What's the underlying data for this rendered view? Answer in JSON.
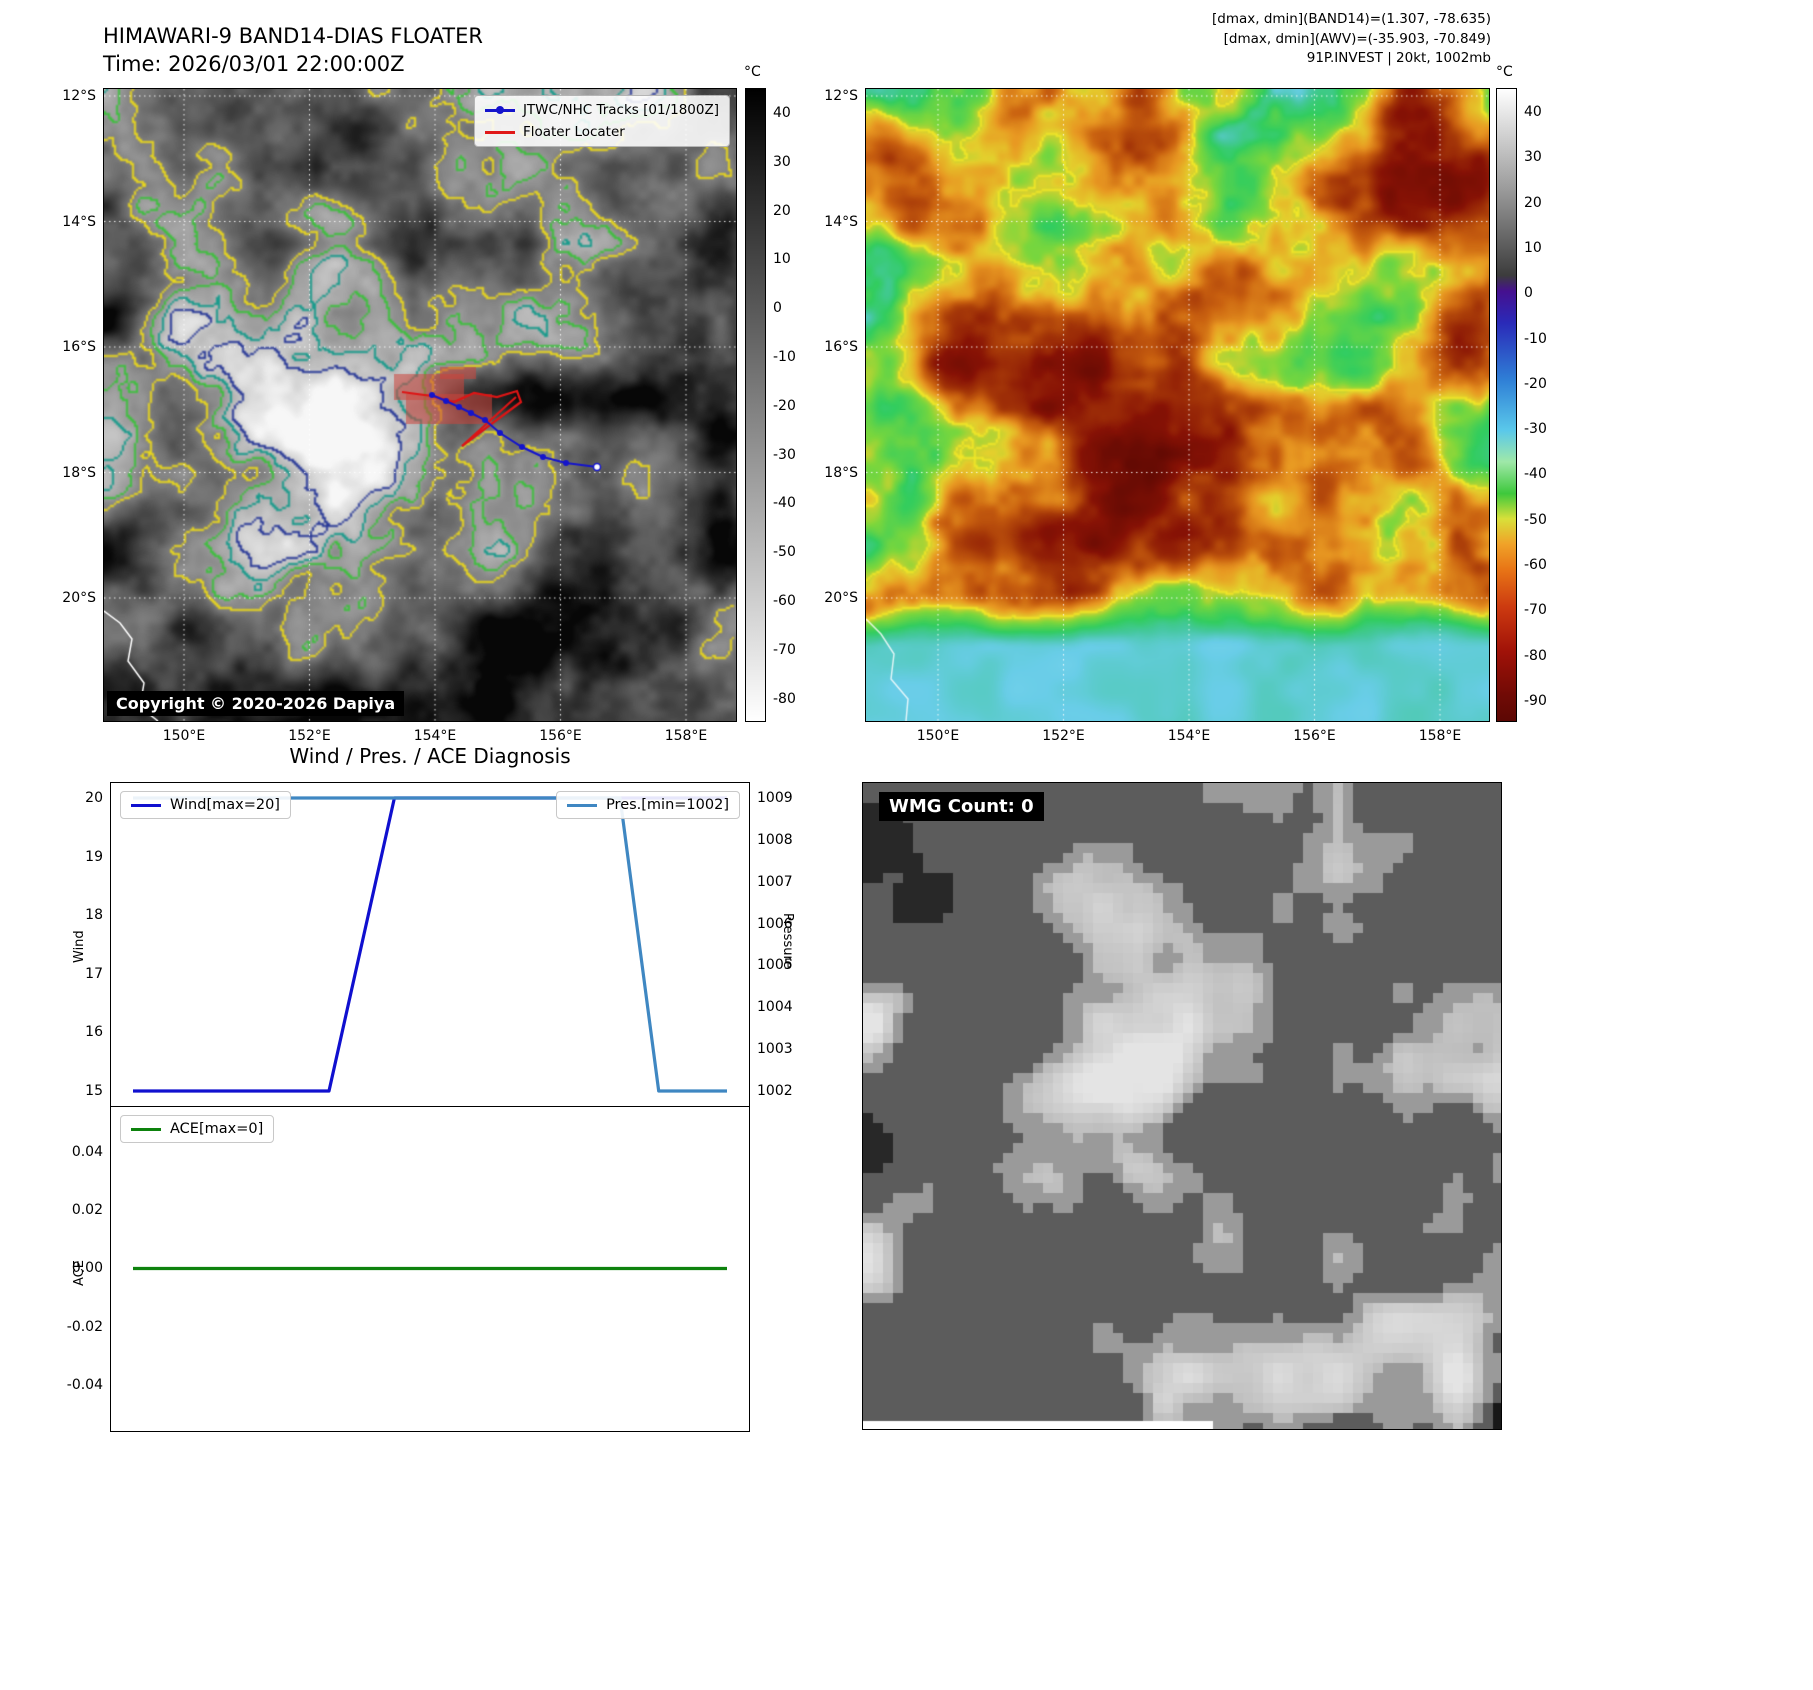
{
  "tl": {
    "title": "HIMAWARI-9 BAND14-DIAS FLOATER",
    "subtitle": "Time: 2026/03/01 22:00:00Z",
    "legend": [
      {
        "label": "JTWC/NHC Tracks [01/1800Z]",
        "color": "#1414cc"
      },
      {
        "label": "Floater Locater",
        "color": "#e01818"
      }
    ],
    "copyright": "Copyright © 2020-2026 Dapiya",
    "colorbar": {
      "unit": "°C",
      "ticks": [
        "40",
        "30",
        "20",
        "10",
        "0",
        "-10",
        "-20",
        "-30",
        "-40",
        "-50",
        "-60",
        "-70",
        "-80"
      ]
    }
  },
  "tr": {
    "header_lines": [
      "[dmax, dmin](BAND14)=(1.307, -78.635)",
      "[dmax, dmin](AWV)=(-35.903, -70.849)",
      "91P.INVEST | 20kt, 1002mb"
    ],
    "colorbar": {
      "unit": "°C",
      "ticks": [
        "40",
        "30",
        "20",
        "10",
        "0",
        "-10",
        "-20",
        "-30",
        "-40",
        "-50",
        "-60",
        "-70",
        "-80",
        "-90"
      ]
    }
  },
  "geo": {
    "lat_ticks": [
      "12°S",
      "14°S",
      "16°S",
      "18°S",
      "20°S"
    ],
    "lon_ticks": [
      "150°E",
      "152°E",
      "154°E",
      "156°E",
      "158°E"
    ]
  },
  "charts": {
    "title": "Wind / Pres. / ACE Diagnosis",
    "wind_yticks": [
      "20",
      "19",
      "18",
      "17",
      "16",
      "15"
    ],
    "pres_yticks": [
      "1009",
      "1008",
      "1007",
      "1006",
      "1005",
      "1004",
      "1003",
      "1002"
    ],
    "ace_yticks": [
      "0.04",
      "0.02",
      "0.00",
      "-0.02",
      "-0.04"
    ],
    "wind_ylabel": "Wind",
    "pres_ylabel": "Pressure",
    "ace_ylabel": "ACE"
  },
  "wmg": {
    "label": "WMG Count: 0"
  },
  "chart_data": [
    {
      "type": "line",
      "title": "Wind / Pres. / ACE Diagnosis",
      "xlabel": "",
      "series": [
        {
          "name": "Wind[max=20]",
          "yaxis": "left",
          "color": "#1010cf",
          "points": [
            [
              0,
              15
            ],
            [
              0.33,
              15
            ],
            [
              0.44,
              20
            ],
            [
              1,
              20
            ]
          ]
        },
        {
          "name": "Pres.[min=1002]",
          "yaxis": "right",
          "color": "#3f87c2",
          "points": [
            [
              0,
              1009
            ],
            [
              0.82,
              1009
            ],
            [
              0.885,
              1002
            ],
            [
              1,
              1002
            ]
          ]
        }
      ],
      "ylabel_left": "Wind",
      "ylim_left": [
        15,
        20
      ],
      "ylabel_right": "Pressure",
      "ylim_right": [
        1002,
        1009
      ],
      "legend_position": "upper-left and upper-right"
    },
    {
      "type": "line",
      "series": [
        {
          "name": "ACE[max=0]",
          "color": "#0d820d",
          "points": [
            [
              0,
              0
            ],
            [
              1,
              0
            ]
          ]
        }
      ],
      "ylabel": "ACE",
      "ylim": [
        -0.05,
        0.05
      ],
      "yticks": [
        0.04,
        0.02,
        0,
        -0.02,
        -0.04
      ],
      "legend_position": "upper-left"
    },
    {
      "type": "heatmap",
      "title": "HIMAWARI-9 BAND14 grayscale IR satellite image with contour overlays, best-track lines and floater locater",
      "colorbar_unit": "°C",
      "colorbar_range": [
        45,
        -85
      ],
      "lon_ticks": [
        "150°E",
        "152°E",
        "154°E",
        "156°E",
        "158°E"
      ],
      "lat_ticks": [
        "12°S",
        "14°S",
        "16°S",
        "18°S",
        "20°S"
      ]
    },
    {
      "type": "heatmap",
      "title": "AWV enhanced color IR satellite image",
      "colorbar_unit": "°C",
      "colorbar_range": [
        45,
        -95
      ],
      "lon_ticks": [
        "150°E",
        "152°E",
        "154°E",
        "156°E",
        "158°E"
      ],
      "lat_ticks": [
        "12°S",
        "14°S",
        "16°S",
        "18°S",
        "20°S"
      ]
    }
  ]
}
